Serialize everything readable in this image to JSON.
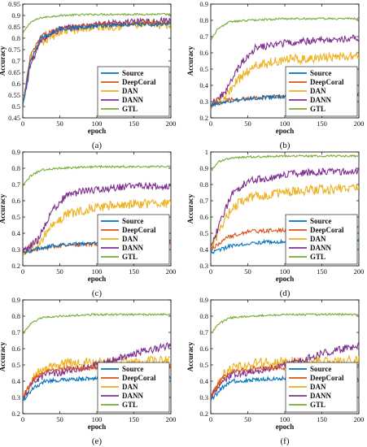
{
  "colors": {
    "Source": "#0072BD",
    "DeepCoral": "#D95319",
    "DAN": "#EDB120",
    "DANN": "#7E2F8E",
    "GTL": "#77AC30"
  },
  "chart_data": [
    {
      "type": "line",
      "caption": "(a)",
      "xlabel": "epoch",
      "ylabel": "Accuracy",
      "xlim": [
        0,
        200
      ],
      "ylim": [
        0.45,
        0.95
      ],
      "xticks": [
        "0",
        "50",
        "100",
        "150",
        "200"
      ],
      "yticks": [
        "0.45",
        "0.5",
        "0.55",
        "0.6",
        "0.65",
        "0.7",
        "0.75",
        "0.8",
        "0.85",
        "0.9",
        "0.95"
      ],
      "legend": "bottom-right",
      "series": [
        {
          "name": "Source",
          "values": [
            [
              0,
              0.5
            ],
            [
              10,
              0.7
            ],
            [
              25,
              0.8
            ],
            [
              50,
              0.84
            ],
            [
              100,
              0.855
            ],
            [
              150,
              0.86
            ],
            [
              200,
              0.86
            ]
          ]
        },
        {
          "name": "DeepCoral",
          "values": [
            [
              0,
              0.5
            ],
            [
              10,
              0.72
            ],
            [
              25,
              0.81
            ],
            [
              50,
              0.845
            ],
            [
              100,
              0.86
            ],
            [
              150,
              0.865
            ],
            [
              200,
              0.865
            ]
          ]
        },
        {
          "name": "DAN",
          "values": [
            [
              0,
              0.5
            ],
            [
              10,
              0.7
            ],
            [
              25,
              0.78
            ],
            [
              50,
              0.83
            ],
            [
              100,
              0.85
            ],
            [
              150,
              0.86
            ],
            [
              200,
              0.86
            ]
          ]
        },
        {
          "name": "DANN",
          "values": [
            [
              0,
              0.5
            ],
            [
              10,
              0.68
            ],
            [
              25,
              0.79
            ],
            [
              50,
              0.84
            ],
            [
              100,
              0.86
            ],
            [
              150,
              0.87
            ],
            [
              200,
              0.875
            ]
          ]
        },
        {
          "name": "GTL",
          "values": [
            [
              0,
              0.82
            ],
            [
              10,
              0.87
            ],
            [
              25,
              0.89
            ],
            [
              50,
              0.9
            ],
            [
              100,
              0.905
            ],
            [
              150,
              0.905
            ],
            [
              200,
              0.905
            ]
          ]
        }
      ]
    },
    {
      "type": "line",
      "caption": "(b)",
      "xlabel": "epoch",
      "ylabel": "Accuracy",
      "xlim": [
        0,
        200
      ],
      "ylim": [
        0.2,
        0.9
      ],
      "xticks": [
        "0",
        "50",
        "100",
        "150",
        "200"
      ],
      "yticks": [
        "0.2",
        "0.3",
        "0.4",
        "0.5",
        "0.6",
        "0.7",
        "0.8",
        "0.9"
      ],
      "legend": "bottom-right",
      "series": [
        {
          "name": "Source",
          "values": [
            [
              0,
              0.28
            ],
            [
              25,
              0.3
            ],
            [
              50,
              0.32
            ],
            [
              100,
              0.33
            ],
            [
              150,
              0.335
            ],
            [
              200,
              0.34
            ]
          ]
        },
        {
          "name": "DeepCoral",
          "values": [
            [
              0,
              0.28
            ],
            [
              25,
              0.31
            ],
            [
              50,
              0.32
            ],
            [
              100,
              0.335
            ],
            [
              150,
              0.34
            ],
            [
              200,
              0.345
            ]
          ]
        },
        {
          "name": "DAN",
          "values": [
            [
              0,
              0.28
            ],
            [
              20,
              0.33
            ],
            [
              40,
              0.45
            ],
            [
              60,
              0.52
            ],
            [
              100,
              0.56
            ],
            [
              150,
              0.57
            ],
            [
              200,
              0.58
            ]
          ]
        },
        {
          "name": "DANN",
          "values": [
            [
              0,
              0.28
            ],
            [
              20,
              0.36
            ],
            [
              40,
              0.53
            ],
            [
              60,
              0.63
            ],
            [
              100,
              0.66
            ],
            [
              150,
              0.68
            ],
            [
              200,
              0.69
            ]
          ]
        },
        {
          "name": "GTL",
          "values": [
            [
              0,
              0.68
            ],
            [
              10,
              0.75
            ],
            [
              25,
              0.79
            ],
            [
              50,
              0.8
            ],
            [
              100,
              0.81
            ],
            [
              150,
              0.81
            ],
            [
              200,
              0.81
            ]
          ]
        }
      ]
    },
    {
      "type": "line",
      "caption": "(c)",
      "xlabel": "epoch",
      "ylabel": "Accuracy",
      "xlim": [
        0,
        200
      ],
      "ylim": [
        0.2,
        0.9
      ],
      "xticks": [
        "0",
        "50",
        "100",
        "150",
        "200"
      ],
      "yticks": [
        "0.2",
        "0.3",
        "0.4",
        "0.5",
        "0.6",
        "0.7",
        "0.8",
        "0.9"
      ],
      "legend": "bottom-right",
      "series": [
        {
          "name": "Source",
          "values": [
            [
              0,
              0.28
            ],
            [
              25,
              0.31
            ],
            [
              50,
              0.33
            ],
            [
              100,
              0.34
            ],
            [
              150,
              0.345
            ],
            [
              200,
              0.35
            ]
          ]
        },
        {
          "name": "DeepCoral",
          "values": [
            [
              0,
              0.28
            ],
            [
              25,
              0.31
            ],
            [
              50,
              0.32
            ],
            [
              100,
              0.335
            ],
            [
              150,
              0.34
            ],
            [
              200,
              0.345
            ]
          ]
        },
        {
          "name": "DAN",
          "values": [
            [
              0,
              0.28
            ],
            [
              20,
              0.33
            ],
            [
              40,
              0.45
            ],
            [
              60,
              0.52
            ],
            [
              100,
              0.56
            ],
            [
              150,
              0.58
            ],
            [
              200,
              0.58
            ]
          ]
        },
        {
          "name": "DANN",
          "values": [
            [
              0,
              0.28
            ],
            [
              20,
              0.36
            ],
            [
              40,
              0.54
            ],
            [
              60,
              0.64
            ],
            [
              100,
              0.67
            ],
            [
              150,
              0.69
            ],
            [
              200,
              0.69
            ]
          ]
        },
        {
          "name": "GTL",
          "values": [
            [
              0,
              0.69
            ],
            [
              10,
              0.75
            ],
            [
              25,
              0.79
            ],
            [
              50,
              0.8
            ],
            [
              100,
              0.81
            ],
            [
              150,
              0.81
            ],
            [
              200,
              0.81
            ]
          ]
        }
      ]
    },
    {
      "type": "line",
      "caption": "(d)",
      "xlabel": "epoch",
      "ylabel": "Accuracy",
      "xlim": [
        0,
        200
      ],
      "ylim": [
        0.3,
        1.0
      ],
      "xticks": [
        "0",
        "50",
        "100",
        "150",
        "200"
      ],
      "yticks": [
        "0.3",
        "0.4",
        "0.5",
        "0.6",
        "0.7",
        "0.8",
        "0.9",
        "1"
      ],
      "legend": "bottom-right",
      "series": [
        {
          "name": "Source",
          "values": [
            [
              0,
              0.38
            ],
            [
              25,
              0.42
            ],
            [
              50,
              0.44
            ],
            [
              100,
              0.45
            ],
            [
              150,
              0.45
            ],
            [
              200,
              0.46
            ]
          ]
        },
        {
          "name": "DeepCoral",
          "values": [
            [
              0,
              0.4
            ],
            [
              25,
              0.48
            ],
            [
              50,
              0.51
            ],
            [
              100,
              0.52
            ],
            [
              150,
              0.53
            ],
            [
              200,
              0.54
            ]
          ]
        },
        {
          "name": "DAN",
          "values": [
            [
              0,
              0.4
            ],
            [
              15,
              0.55
            ],
            [
              30,
              0.66
            ],
            [
              50,
              0.72
            ],
            [
              100,
              0.75
            ],
            [
              150,
              0.77
            ],
            [
              200,
              0.78
            ]
          ]
        },
        {
          "name": "DANN",
          "values": [
            [
              0,
              0.4
            ],
            [
              15,
              0.6
            ],
            [
              30,
              0.75
            ],
            [
              50,
              0.82
            ],
            [
              100,
              0.86
            ],
            [
              150,
              0.88
            ],
            [
              200,
              0.88
            ]
          ]
        },
        {
          "name": "GTL",
          "values": [
            [
              0,
              0.88
            ],
            [
              10,
              0.94
            ],
            [
              25,
              0.96
            ],
            [
              50,
              0.97
            ],
            [
              100,
              0.975
            ],
            [
              150,
              0.975
            ],
            [
              200,
              0.975
            ]
          ]
        }
      ]
    },
    {
      "type": "line",
      "caption": "(e)",
      "xlabel": "epoch",
      "ylabel": "Accuracy",
      "xlim": [
        0,
        200
      ],
      "ylim": [
        0.2,
        0.9
      ],
      "xticks": [
        "0",
        "50",
        "100",
        "150",
        "200"
      ],
      "yticks": [
        "0.2",
        "0.3",
        "0.4",
        "0.5",
        "0.6",
        "0.7",
        "0.8",
        "0.9"
      ],
      "legend": "bottom-right",
      "series": [
        {
          "name": "Source",
          "values": [
            [
              0,
              0.28
            ],
            [
              15,
              0.36
            ],
            [
              30,
              0.4
            ],
            [
              60,
              0.41
            ],
            [
              100,
              0.42
            ],
            [
              150,
              0.42
            ],
            [
              200,
              0.42
            ]
          ]
        },
        {
          "name": "DeepCoral",
          "values": [
            [
              0,
              0.3
            ],
            [
              15,
              0.42
            ],
            [
              30,
              0.46
            ],
            [
              60,
              0.48
            ],
            [
              100,
              0.48
            ],
            [
              150,
              0.49
            ],
            [
              200,
              0.49
            ]
          ]
        },
        {
          "name": "DAN",
          "values": [
            [
              0,
              0.3
            ],
            [
              15,
              0.43
            ],
            [
              30,
              0.48
            ],
            [
              60,
              0.51
            ],
            [
              100,
              0.52
            ],
            [
              150,
              0.52
            ],
            [
              200,
              0.53
            ]
          ]
        },
        {
          "name": "DANN",
          "values": [
            [
              0,
              0.3
            ],
            [
              15,
              0.4
            ],
            [
              30,
              0.44
            ],
            [
              60,
              0.46
            ],
            [
              100,
              0.5
            ],
            [
              150,
              0.57
            ],
            [
              200,
              0.62
            ]
          ]
        },
        {
          "name": "GTL",
          "values": [
            [
              0,
              0.69
            ],
            [
              10,
              0.75
            ],
            [
              25,
              0.79
            ],
            [
              50,
              0.8
            ],
            [
              100,
              0.81
            ],
            [
              150,
              0.81
            ],
            [
              200,
              0.81
            ]
          ]
        }
      ]
    },
    {
      "type": "line",
      "caption": "(f)",
      "xlabel": "epoch",
      "ylabel": "Accuracy",
      "xlim": [
        0,
        200
      ],
      "ylim": [
        0.2,
        0.9
      ],
      "xticks": [
        "0",
        "50",
        "100",
        "150",
        "200"
      ],
      "yticks": [
        "0.2",
        "0.3",
        "0.4",
        "0.5",
        "0.6",
        "0.7",
        "0.8",
        "0.9"
      ],
      "legend": "bottom-right",
      "series": [
        {
          "name": "Source",
          "values": [
            [
              0,
              0.28
            ],
            [
              15,
              0.36
            ],
            [
              30,
              0.4
            ],
            [
              60,
              0.41
            ],
            [
              100,
              0.42
            ],
            [
              150,
              0.42
            ],
            [
              200,
              0.42
            ]
          ]
        },
        {
          "name": "DeepCoral",
          "values": [
            [
              0,
              0.3
            ],
            [
              15,
              0.42
            ],
            [
              30,
              0.46
            ],
            [
              60,
              0.48
            ],
            [
              100,
              0.48
            ],
            [
              150,
              0.49
            ],
            [
              200,
              0.49
            ]
          ]
        },
        {
          "name": "DAN",
          "values": [
            [
              0,
              0.3
            ],
            [
              15,
              0.43
            ],
            [
              30,
              0.48
            ],
            [
              60,
              0.51
            ],
            [
              100,
              0.52
            ],
            [
              150,
              0.52
            ],
            [
              200,
              0.53
            ]
          ]
        },
        {
          "name": "DANN",
          "values": [
            [
              0,
              0.3
            ],
            [
              15,
              0.4
            ],
            [
              30,
              0.44
            ],
            [
              60,
              0.46
            ],
            [
              100,
              0.5
            ],
            [
              150,
              0.57
            ],
            [
              200,
              0.62
            ]
          ]
        },
        {
          "name": "GTL",
          "values": [
            [
              0,
              0.69
            ],
            [
              10,
              0.75
            ],
            [
              25,
              0.79
            ],
            [
              50,
              0.8
            ],
            [
              100,
              0.81
            ],
            [
              150,
              0.81
            ],
            [
              200,
              0.81
            ]
          ]
        }
      ]
    }
  ]
}
